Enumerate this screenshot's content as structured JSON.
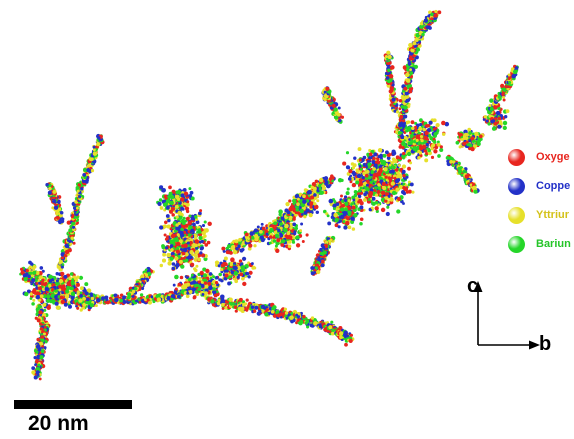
{
  "legend": {
    "items": [
      {
        "label": "Oxyge",
        "color": "#e8261f",
        "text_color": "#e8261f"
      },
      {
        "label": "Coppe",
        "color": "#2331c8",
        "text_color": "#2331c8"
      },
      {
        "label": "Yttriur",
        "color": "#e6e02a",
        "text_color": "#d4c21a"
      },
      {
        "label": "Bariun",
        "color": "#25d629",
        "text_color": "#25c529"
      }
    ]
  },
  "axes": {
    "c_label": "c",
    "b_label": "b"
  },
  "scale_bar": {
    "label": "20 nm"
  }
}
